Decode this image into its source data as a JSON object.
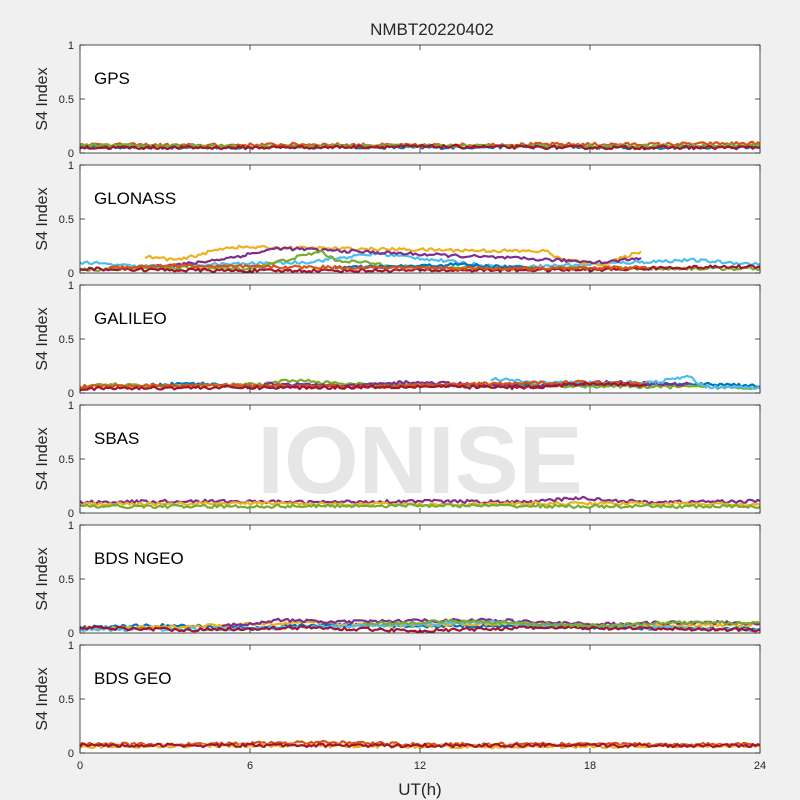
{
  "figure": {
    "title": "NMBT20220402",
    "xlabel": "UT(h)",
    "watermark": "IONISE"
  },
  "chart_data": {
    "type": "line",
    "title": "NMBT20220402",
    "xlabel": "UT(h)",
    "xlim": [
      0,
      24
    ],
    "xticks": [
      0,
      6,
      12,
      18,
      24
    ],
    "ylim": [
      0,
      1
    ],
    "yticks": [
      0,
      0.5,
      1
    ],
    "ylabel": "S4 Index",
    "grid": false,
    "series_colors": [
      "#0072BD",
      "#D95319",
      "#EDB120",
      "#7E2F8E",
      "#77AC30",
      "#4DBEEE",
      "#A2142F"
    ],
    "panels": [
      {
        "label": "GPS",
        "series": [
          {
            "color": "#0072BD",
            "points": [
              [
                0,
                0.06
              ],
              [
                4,
                0.05
              ],
              [
                8,
                0.06
              ],
              [
                12,
                0.05
              ],
              [
                16,
                0.06
              ],
              [
                20,
                0.05
              ],
              [
                24,
                0.06
              ]
            ]
          },
          {
            "color": "#D95319",
            "points": [
              [
                0,
                0.08
              ],
              [
                4,
                0.07
              ],
              [
                8,
                0.08
              ],
              [
                12,
                0.07
              ],
              [
                16,
                0.08
              ],
              [
                20,
                0.08
              ],
              [
                24,
                0.09
              ]
            ]
          },
          {
            "color": "#77AC30",
            "points": [
              [
                0,
                0.07
              ],
              [
                6,
                0.06
              ],
              [
                12,
                0.07
              ],
              [
                18,
                0.06
              ],
              [
                24,
                0.07
              ]
            ]
          },
          {
            "color": "#A2142F",
            "points": [
              [
                0,
                0.05
              ],
              [
                6,
                0.05
              ],
              [
                12,
                0.06
              ],
              [
                18,
                0.05
              ],
              [
                24,
                0.05
              ]
            ]
          }
        ]
      },
      {
        "label": "GLONASS",
        "series": [
          {
            "color": "#4DBEEE",
            "points": [
              [
                0,
                0.1
              ],
              [
                1,
                0.08
              ],
              [
                2,
                0.06
              ],
              [
                8,
                0.1
              ],
              [
                9.5,
                0.15
              ],
              [
                10.5,
                0.18
              ],
              [
                15,
                0.05
              ],
              [
                21.5,
                0.12
              ],
              [
                24,
                0.08
              ]
            ]
          },
          {
            "color": "#EDB120",
            "points": [
              [
                2.3,
                0.15
              ],
              [
                3.5,
                0.12
              ],
              [
                5.2,
                0.24
              ],
              [
                16.5,
                0.2
              ],
              [
                17,
                0.12
              ],
              [
                18.5,
                0.08
              ],
              [
                19.8,
                0.2
              ]
            ]
          },
          {
            "color": "#7E2F8E",
            "points": [
              [
                2.5,
                0.06
              ],
              [
                4,
                0.09
              ],
              [
                5.5,
                0.15
              ],
              [
                7,
                0.23
              ],
              [
                18.5,
                0.1
              ],
              [
                19.8,
                0.14
              ]
            ]
          },
          {
            "color": "#77AC30",
            "points": [
              [
                0,
                0.03
              ],
              [
                3,
                0.05
              ],
              [
                6,
                0.04
              ],
              [
                8.5,
                0.2
              ],
              [
                9,
                0.12
              ],
              [
                12,
                0.05
              ],
              [
                24,
                0.04
              ]
            ]
          },
          {
            "color": "#0072BD",
            "points": [
              [
                9,
                0.05
              ],
              [
                11.5,
                0.06
              ],
              [
                13.5,
                0.08
              ],
              [
                14.5,
                0.06
              ],
              [
                16,
                0.05
              ]
            ]
          },
          {
            "color": "#A2142F",
            "points": [
              [
                0,
                0.04
              ],
              [
                2.5,
                0.03
              ],
              [
                6,
                0.02
              ],
              [
                18.5,
                0.03
              ],
              [
                21,
                0.05
              ],
              [
                24,
                0.06
              ]
            ]
          },
          {
            "color": "#D95319",
            "points": [
              [
                1,
                0.05
              ],
              [
                3,
                0.07
              ],
              [
                5,
                0.06
              ],
              [
                16,
                0.04
              ],
              [
                20,
                0.05
              ]
            ]
          }
        ]
      },
      {
        "label": "GALILEO",
        "series": [
          {
            "color": "#0072BD",
            "points": [
              [
                2.5,
                0.07
              ],
              [
                4,
                0.09
              ],
              [
                6,
                0.06
              ],
              [
                11.5,
                0.08
              ],
              [
                13,
                0.07
              ],
              [
                23,
                0.08
              ],
              [
                24,
                0.06
              ]
            ]
          },
          {
            "color": "#77AC30",
            "points": [
              [
                0,
                0.05
              ],
              [
                1,
                0.08
              ],
              [
                2.5,
                0.06
              ],
              [
                6.5,
                0.08
              ],
              [
                7.5,
                0.12
              ],
              [
                9.5,
                0.08
              ],
              [
                24,
                0.05
              ]
            ]
          },
          {
            "color": "#7E2F8E",
            "points": [
              [
                6.5,
                0.09
              ],
              [
                9.5,
                0.06
              ],
              [
                11.5,
                0.1
              ],
              [
                14,
                0.08
              ],
              [
                16,
                0.06
              ],
              [
                18.5,
                0.1
              ],
              [
                21.5,
                0.08
              ]
            ]
          },
          {
            "color": "#4DBEEE",
            "points": [
              [
                14.5,
                0.13
              ],
              [
                16,
                0.1
              ],
              [
                20,
                0.09
              ],
              [
                21.5,
                0.15
              ],
              [
                22,
                0.06
              ],
              [
                24,
                0.05
              ]
            ]
          },
          {
            "color": "#D95319",
            "points": [
              [
                0,
                0.06
              ],
              [
                4,
                0.07
              ],
              [
                10,
                0.06
              ],
              [
                17.5,
                0.1
              ],
              [
                20,
                0.09
              ]
            ]
          },
          {
            "color": "#A2142F",
            "points": [
              [
                0,
                0.04
              ],
              [
                4,
                0.05
              ],
              [
                8,
                0.05
              ],
              [
                12,
                0.06
              ],
              [
                16,
                0.05
              ],
              [
                18,
                0.09
              ],
              [
                20,
                0.07
              ]
            ]
          }
        ]
      },
      {
        "label": "SBAS",
        "series": [
          {
            "color": "#7E2F8E",
            "points": [
              [
                0,
                0.1
              ],
              [
                4,
                0.11
              ],
              [
                8,
                0.1
              ],
              [
                12,
                0.11
              ],
              [
                16,
                0.1
              ],
              [
                17.5,
                0.14
              ],
              [
                20,
                0.1
              ],
              [
                24,
                0.11
              ]
            ]
          },
          {
            "color": "#EDB120",
            "points": [
              [
                0,
                0.08
              ],
              [
                6,
                0.09
              ],
              [
                12,
                0.08
              ],
              [
                18,
                0.09
              ],
              [
                24,
                0.08
              ]
            ]
          },
          {
            "color": "#77AC30",
            "points": [
              [
                0,
                0.06
              ],
              [
                6,
                0.06
              ],
              [
                12,
                0.07
              ],
              [
                18,
                0.06
              ],
              [
                24,
                0.06
              ]
            ]
          }
        ]
      },
      {
        "label": "BDS NGEO",
        "series": [
          {
            "color": "#0072BD",
            "points": [
              [
                0,
                0.05
              ],
              [
                3,
                0.07
              ],
              [
                6,
                0.05
              ],
              [
                9,
                0.08
              ],
              [
                12,
                0.06
              ],
              [
                15,
                0.07
              ],
              [
                18,
                0.05
              ],
              [
                24,
                0.04
              ]
            ]
          },
          {
            "color": "#EDB120",
            "points": [
              [
                0,
                0.04
              ],
              [
                4,
                0.06
              ],
              [
                8,
                0.1
              ],
              [
                11,
                0.07
              ],
              [
                15,
                0.09
              ],
              [
                20,
                0.06
              ],
              [
                24,
                0.08
              ]
            ]
          },
          {
            "color": "#7E2F8E",
            "points": [
              [
                5,
                0.06
              ],
              [
                7,
                0.12
              ],
              [
                9,
                0.1
              ],
              [
                11,
                0.11
              ],
              [
                14.5,
                0.12
              ],
              [
                18,
                0.08
              ],
              [
                22,
                0.1
              ],
              [
                24,
                0.09
              ]
            ]
          },
          {
            "color": "#4DBEEE",
            "points": [
              [
                0,
                0.03
              ],
              [
                6,
                0.04
              ],
              [
                12,
                0.08
              ],
              [
                14.5,
                0.11
              ],
              [
                16,
                0.07
              ],
              [
                20,
                0.05
              ],
              [
                24,
                0.03
              ]
            ]
          },
          {
            "color": "#A2142F",
            "points": [
              [
                0,
                0.05
              ],
              [
                4,
                0.03
              ],
              [
                8,
                0.05
              ],
              [
                12,
                0.02
              ],
              [
                16,
                0.05
              ],
              [
                20,
                0.04
              ],
              [
                24,
                0.03
              ]
            ]
          },
          {
            "color": "#77AC30",
            "points": [
              [
                10,
                0.08
              ],
              [
                13,
                0.11
              ],
              [
                18,
                0.07
              ],
              [
                22,
                0.1
              ],
              [
                24,
                0.09
              ]
            ]
          }
        ]
      },
      {
        "label": "BDS GEO",
        "series": [
          {
            "color": "#D95319",
            "points": [
              [
                0,
                0.08
              ],
              [
                4,
                0.08
              ],
              [
                9,
                0.1
              ],
              [
                12,
                0.08
              ],
              [
                18,
                0.08
              ],
              [
                24,
                0.08
              ]
            ]
          },
          {
            "color": "#EDB120",
            "points": [
              [
                0,
                0.06
              ],
              [
                6,
                0.07
              ],
              [
                12,
                0.06
              ],
              [
                18,
                0.06
              ],
              [
                24,
                0.07
              ]
            ]
          },
          {
            "color": "#A2142F",
            "points": [
              [
                0,
                0.07
              ],
              [
                6,
                0.07
              ],
              [
                12,
                0.07
              ],
              [
                18,
                0.07
              ],
              [
                24,
                0.07
              ]
            ]
          }
        ]
      }
    ]
  }
}
